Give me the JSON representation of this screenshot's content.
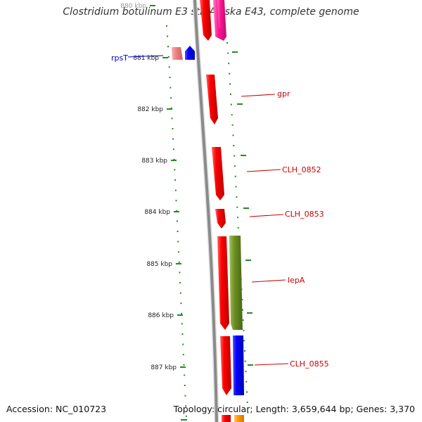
{
  "title": "Clostridium botulinum E3 str. Alaska E43, complete genome",
  "footer": {
    "accession": "Accession: NC_010723",
    "summary": "Topology: circular; Length: 3,659,644 bp; Genes: 3,370"
  },
  "ticks": [
    "880 kbp",
    "881 kbp",
    "882 kbp",
    "883 kbp",
    "884 kbp",
    "885 kbp",
    "886 kbp",
    "887 kbp"
  ],
  "genes": [
    {
      "label": "rpsT",
      "strand": "minus",
      "label_color": "#0000cc"
    },
    {
      "label": "gpr",
      "strand": "plus",
      "label_color": "#cc0000"
    },
    {
      "label": "CLH_0852",
      "strand": "plus",
      "label_color": "#cc0000"
    },
    {
      "label": "CLH_0853",
      "strand": "plus",
      "label_color": "#cc0000"
    },
    {
      "label": "lepA",
      "strand": "plus",
      "label_color": "#cc0000"
    },
    {
      "label": "CLH_0855",
      "strand": "plus",
      "label_color": "#cc0000"
    }
  ],
  "colors": {
    "backbone": "#8a8a8a",
    "gene_red": "#ff0000",
    "gene_blue": "#0000ff",
    "gene_olive": "#6b8e23",
    "gene_pink": "#ff1493",
    "gene_salmon": "#f08080",
    "gene_orange": "#ff9900",
    "tick": "#228b22"
  }
}
